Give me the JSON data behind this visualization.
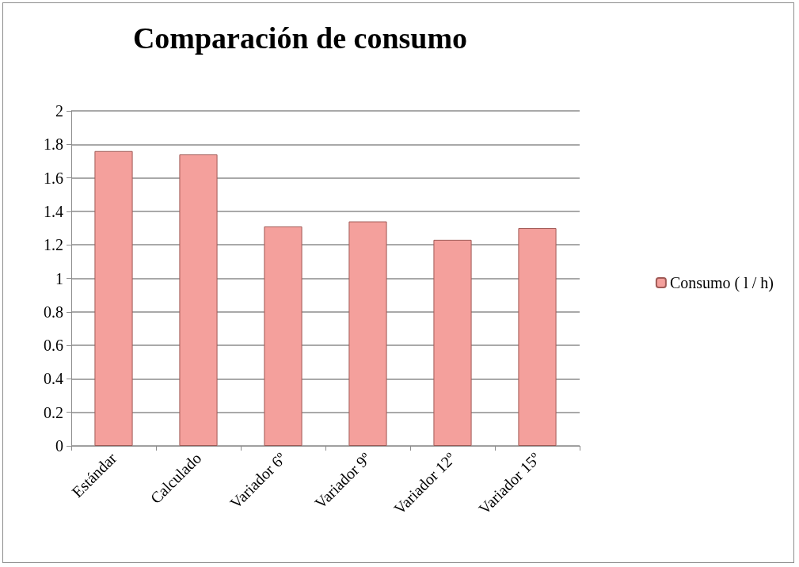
{
  "chart_data": {
    "type": "bar",
    "title": "Comparación de consumo",
    "categories": [
      "Estándar",
      "Calculado",
      "Variador 6º",
      "Variador 9º",
      "Variador 12º",
      "Variador 15º"
    ],
    "series": [
      {
        "name": "Consumo ( l / h)",
        "color": "#f4a09c",
        "values": [
          1.76,
          1.74,
          1.31,
          1.34,
          1.23,
          1.3
        ]
      }
    ],
    "ylim": [
      0,
      2
    ],
    "yticks": [
      0,
      0.2,
      0.4,
      0.6,
      0.8,
      1,
      1.2,
      1.4,
      1.6,
      1.8,
      2
    ],
    "grid": "y",
    "legend": "right"
  }
}
